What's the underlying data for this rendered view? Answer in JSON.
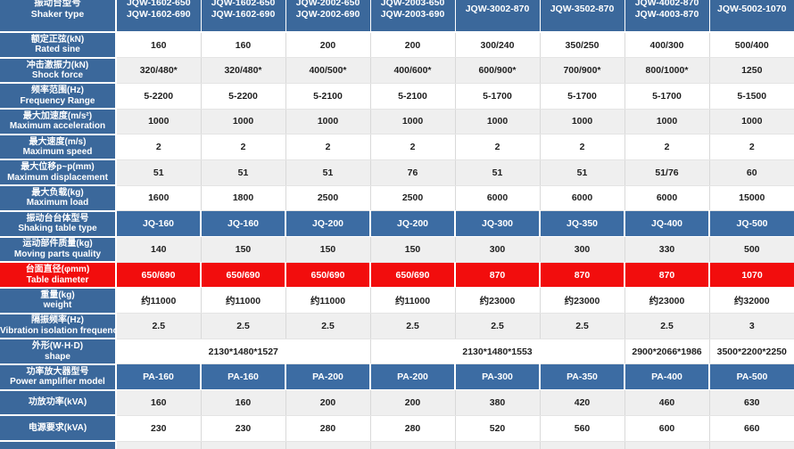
{
  "colors": {
    "header_blue": "#3b689b",
    "row_blue": "#3c6ca3",
    "accent_red": "#f20d0d",
    "zebra_gray": "#efefef",
    "data_text": "#1f1f1f"
  },
  "table": {
    "header": {
      "label_zh": "振动台型号",
      "label_en": "Shaker type",
      "models": [
        [
          "JQW-1602-650",
          "JQW-1602-690"
        ],
        [
          "JQW-1602-650",
          "JQW-1602-690"
        ],
        [
          "JQW-2002-650",
          "JQW-2002-690"
        ],
        [
          "JQW-2003-650",
          "JQW-2003-690"
        ],
        [
          "JQW-3002-870"
        ],
        [
          "JQW-3502-870"
        ],
        [
          "JQW-4002-870",
          "JQW-4003-870"
        ],
        [
          "JQW-5002-1070"
        ]
      ]
    },
    "rows": [
      {
        "zh": "额定正弦(kN)",
        "en": "Rated sine",
        "values": [
          "160",
          "160",
          "200",
          "200",
          "300/240",
          "350/250",
          "400/300",
          "500/400"
        ]
      },
      {
        "zh": "冲击激振力(kN)",
        "en": "Shock force",
        "values": [
          "320/480*",
          "320/480*",
          "400/500*",
          "400/600*",
          "600/900*",
          "700/900*",
          "800/1000*",
          "1250"
        ]
      },
      {
        "zh": "频率范围(Hz)",
        "en": "Frequency Range",
        "values": [
          "5-2200",
          "5-2200",
          "5-2100",
          "5-2100",
          "5-1700",
          "5-1700",
          "5-1700",
          "5-1500"
        ]
      },
      {
        "zh": "最大加速度(m/s²)",
        "en": "Maximum acceleration",
        "values": [
          "1000",
          "1000",
          "1000",
          "1000",
          "1000",
          "1000",
          "1000",
          "1000"
        ]
      },
      {
        "zh": "最大速度(m/s)",
        "en": "Maximum speed",
        "values": [
          "2",
          "2",
          "2",
          "2",
          "2",
          "2",
          "2",
          "2"
        ]
      },
      {
        "zh": "最大位移p~p(mm)",
        "en": "Maximum displacement",
        "values": [
          "51",
          "51",
          "51",
          "76",
          "51",
          "51",
          "51/76",
          "60"
        ]
      },
      {
        "zh": "最大负载(kg)",
        "en": "Maximum load",
        "values": [
          "1600",
          "1800",
          "2500",
          "2500",
          "6000",
          "6000",
          "6000",
          "15000"
        ]
      },
      {
        "zh": "振动台台体型号",
        "en": "Shaking table type",
        "style": "blue",
        "values": [
          "JQ-160",
          "JQ-160",
          "JQ-200",
          "JQ-200",
          "JQ-300",
          "JQ-350",
          "JQ-400",
          "JQ-500"
        ]
      },
      {
        "zh": "运动部件质量(kg)",
        "en": "Moving parts quality",
        "values": [
          "140",
          "150",
          "150",
          "150",
          "300",
          "300",
          "330",
          "500"
        ]
      },
      {
        "zh": "台面直径(φmm)",
        "en": "Table diameter",
        "style": "red",
        "values": [
          "650/690",
          "650/690",
          "650/690",
          "650/690",
          "870",
          "870",
          "870",
          "1070"
        ]
      },
      {
        "zh": "重量(kg)",
        "en": "weight",
        "values": [
          "约11000",
          "约11000",
          "约11000",
          "约11000",
          "约23000",
          "约23000",
          "约23000",
          "约32000"
        ]
      },
      {
        "zh": "隔振频率(Hz)",
        "en": "Vibration isolation frequency",
        "values": [
          "2.5",
          "2.5",
          "2.5",
          "2.5",
          "2.5",
          "2.5",
          "2.5",
          "3"
        ]
      },
      {
        "zh": "外形(W·H·D)",
        "en": "shape",
        "merged": [
          {
            "span": 3,
            "text": "2130*1480*1527"
          },
          {
            "span": 3,
            "text": "2130*1480*1553"
          },
          {
            "span": 1,
            "text": "2900*2066*1986"
          },
          {
            "span": 1,
            "text": "3500*2200*2250"
          }
        ]
      },
      {
        "zh": "功率放大器型号",
        "en": "Power amplifier model",
        "style": "blue",
        "values": [
          "PA-160",
          "PA-160",
          "PA-200",
          "PA-200",
          "PA-300",
          "PA-350",
          "PA-400",
          "PA-500"
        ]
      },
      {
        "zh": "功放功率(kVA)",
        "en": "",
        "values": [
          "160",
          "160",
          "200",
          "200",
          "380",
          "420",
          "460",
          "630"
        ]
      },
      {
        "zh": "电源要求(kVA)",
        "en": "",
        "values": [
          "230",
          "230",
          "280",
          "280",
          "520",
          "560",
          "600",
          "660"
        ]
      },
      {
        "zh": "",
        "en": "",
        "partial": true,
        "values": [
          "",
          "",
          "",
          "",
          "",
          "",
          "",
          ""
        ]
      }
    ]
  }
}
